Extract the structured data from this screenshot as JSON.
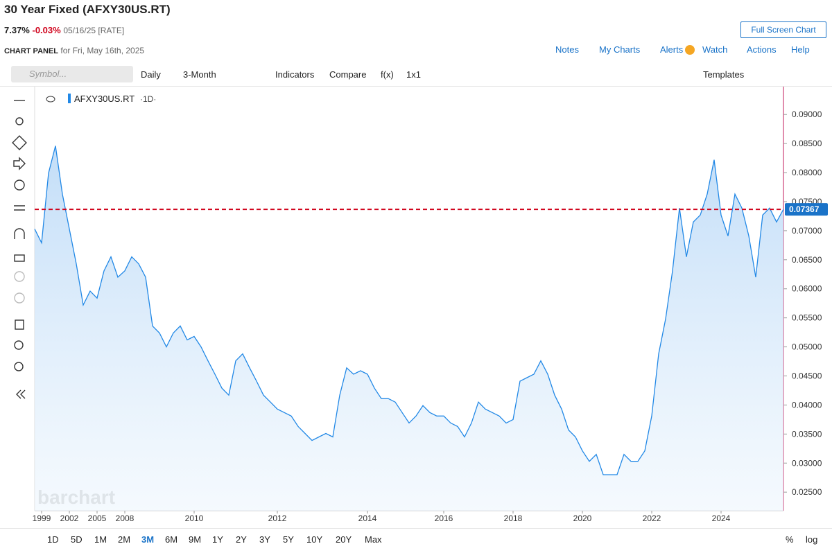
{
  "header": {
    "title": "30 Year Fixed (AFXY30US.RT)",
    "last": "7.37%",
    "change": "-0.03%",
    "date": "05/16/25 [RATE]",
    "full_screen": "Full Screen Chart",
    "panel": "CHART PANEL",
    "panel_date": "for Fri, May 16th, 2025",
    "nav": [
      "Notes",
      "My Charts",
      "Alerts",
      "Watch",
      "Actions",
      "Help"
    ]
  },
  "toolbar": {
    "search": "Symbol...",
    "items": [
      "Daily",
      "3-Month",
      "Indicators",
      "Compare",
      "f(x)",
      "1x1"
    ],
    "templates": "Templates"
  },
  "legend_interval": "·1D·",
  "watermark": "barchart",
  "timeframes": [
    "1D",
    "5D",
    "1M",
    "2M",
    "3M",
    "6M",
    "9M",
    "1Y",
    "2Y",
    "3Y",
    "5Y",
    "10Y",
    "20Y",
    "Max"
  ],
  "active_timeframe": "3M",
  "right_buttons": [
    "%",
    "log"
  ],
  "chart_data": {
    "type": "line",
    "categories": [
      null,
      "1999",
      null,
      null,
      null,
      "2002",
      null,
      null,
      null,
      "2005",
      null,
      null,
      null,
      "2008",
      null,
      null,
      null,
      null,
      null,
      null,
      null,
      null,
      null,
      "2010",
      null,
      null,
      null,
      null,
      null,
      null,
      null,
      null,
      null,
      null,
      null,
      "2012",
      null,
      null,
      null,
      null,
      null,
      null,
      null,
      null,
      null,
      null,
      null,
      null,
      "2014",
      null,
      null,
      null,
      null,
      null,
      null,
      null,
      null,
      null,
      null,
      "2016",
      null,
      null,
      null,
      null,
      null,
      null,
      null,
      null,
      null,
      "2018",
      null,
      null,
      null,
      null,
      null,
      null,
      null,
      null,
      null,
      "2020",
      null,
      null,
      null,
      null,
      null,
      null,
      null,
      null,
      null,
      "2022",
      null,
      null,
      null,
      null,
      null,
      null,
      null,
      null,
      null,
      "2024",
      null,
      null,
      null,
      null,
      null,
      null,
      null,
      null,
      null
    ],
    "series": [
      {
        "name": "AFXY30US.RT",
        "color": "#2188e6",
        "values": [
          0.0703,
          0.0679,
          0.0799,
          0.0846,
          0.0763,
          0.0703,
          0.0643,
          0.0572,
          0.0596,
          0.0584,
          0.0631,
          0.0655,
          0.062,
          0.0631,
          0.0655,
          0.0643,
          0.062,
          0.0536,
          0.0524,
          0.05,
          0.0524,
          0.0536,
          0.0512,
          0.0518,
          0.05,
          0.0476,
          0.0453,
          0.0429,
          0.0417,
          0.0476,
          0.0488,
          0.0464,
          0.0441,
          0.0417,
          0.0405,
          0.0393,
          0.0387,
          0.0381,
          0.0363,
          0.0351,
          0.0339,
          0.0345,
          0.0351,
          0.0345,
          0.0417,
          0.0464,
          0.0453,
          0.0459,
          0.0453,
          0.0429,
          0.0411,
          0.0411,
          0.0405,
          0.0387,
          0.0369,
          0.0381,
          0.0399,
          0.0387,
          0.0381,
          0.0381,
          0.0369,
          0.0363,
          0.0345,
          0.0369,
          0.0405,
          0.0393,
          0.0387,
          0.0381,
          0.0369,
          0.0375,
          0.0441,
          0.0447,
          0.0453,
          0.0476,
          0.0453,
          0.0417,
          0.0393,
          0.0357,
          0.0345,
          0.0321,
          0.0303,
          0.0315,
          0.028,
          0.028,
          0.028,
          0.0315,
          0.0303,
          0.0303,
          0.0321,
          0.0381,
          0.0488,
          0.0548,
          0.0631,
          0.0739,
          0.0655,
          0.0715,
          0.0727,
          0.0763,
          0.0822,
          0.0727,
          0.0691,
          0.0763,
          0.0739,
          0.0691,
          0.062,
          0.0727,
          0.0739,
          0.0715,
          0.07367
        ]
      }
    ],
    "last_price": 0.07367,
    "last_price_color": "#d0021b",
    "ylim": [
      0.0218,
      0.0948
    ],
    "yticks": [
      {
        "value": 0.025,
        "label": "0.02500"
      },
      {
        "value": 0.03,
        "label": "0.03000"
      },
      {
        "value": 0.035,
        "label": "0.03500"
      },
      {
        "value": 0.04,
        "label": "0.04000"
      },
      {
        "value": 0.045,
        "label": "0.04500"
      },
      {
        "value": 0.05,
        "label": "0.05000"
      },
      {
        "value": 0.055,
        "label": "0.05500"
      },
      {
        "value": 0.06,
        "label": "0.06000"
      },
      {
        "value": 0.065,
        "label": "0.06500"
      },
      {
        "value": 0.07,
        "label": "0.07000"
      },
      {
        "value": 0.075,
        "label": "0.07500"
      },
      {
        "value": 0.08,
        "label": "0.08000"
      },
      {
        "value": 0.085,
        "label": "0.08500"
      },
      {
        "value": 0.09,
        "label": "0.09000"
      }
    ],
    "grid": false
  }
}
